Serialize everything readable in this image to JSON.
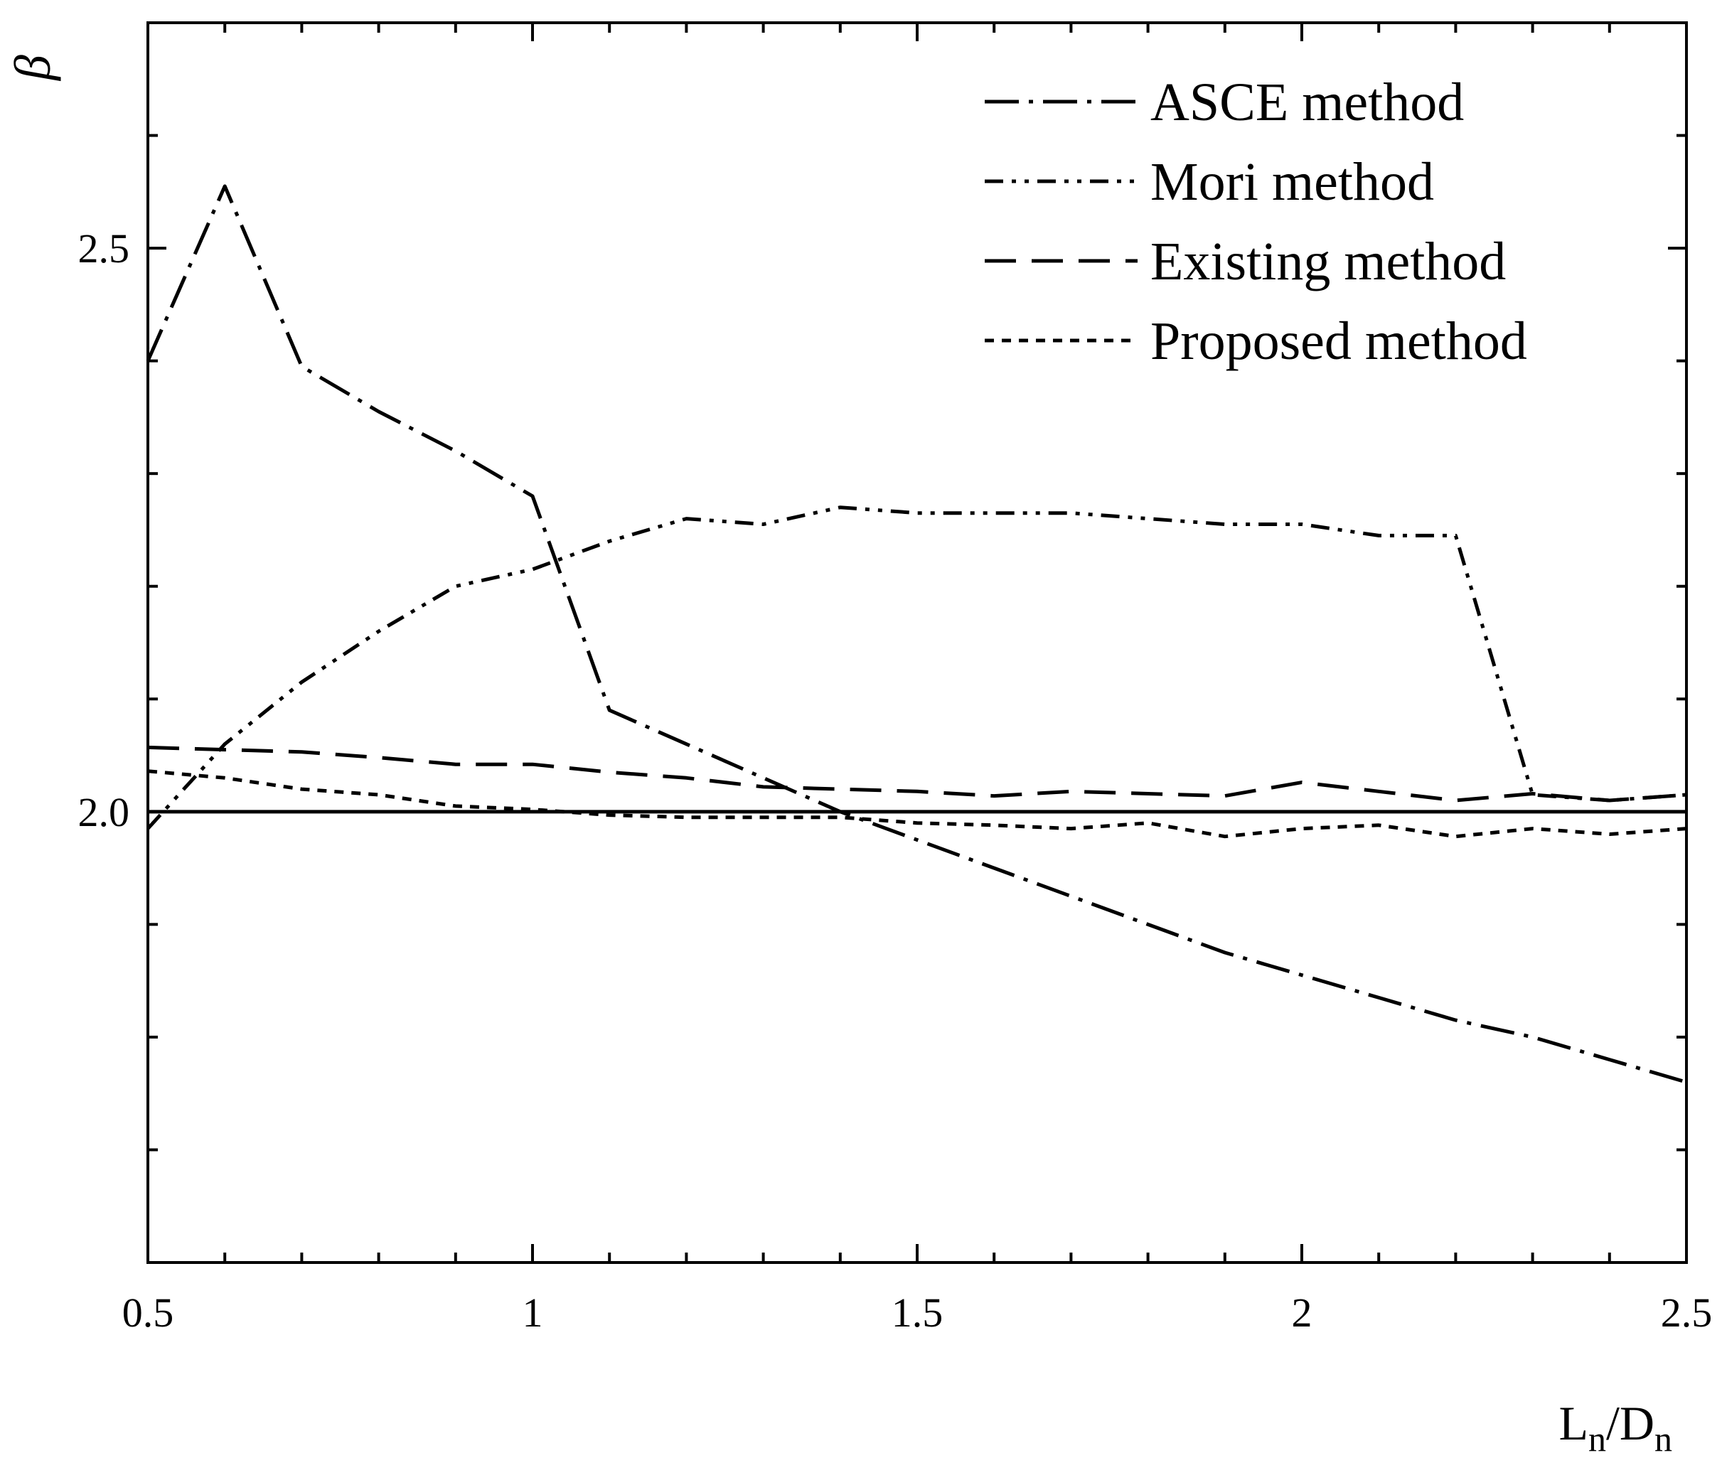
{
  "chart_data": {
    "type": "line",
    "title": "",
    "xlabel_main": "L",
    "xlabel_sub1": "n",
    "xlabel_sep": "/D",
    "xlabel_sub2": "n",
    "ylabel": "β",
    "xlim": [
      0.5,
      2.5
    ],
    "ylim": [
      1.6,
      2.7
    ],
    "x_ticks": [
      {
        "value": 0.5,
        "label": "0.5"
      },
      {
        "value": 1.0,
        "label": "1"
      },
      {
        "value": 1.5,
        "label": "1.5"
      },
      {
        "value": 2.0,
        "label": "2"
      },
      {
        "value": 2.5,
        "label": "2.5"
      }
    ],
    "y_ticks": [
      {
        "value": 2.0,
        "label": "2.0"
      },
      {
        "value": 2.5,
        "label": "2.5"
      }
    ],
    "x_minor_ticks": [
      0.6,
      0.7,
      0.8,
      0.9,
      1.1,
      1.2,
      1.3,
      1.4,
      1.6,
      1.7,
      1.8,
      1.9,
      2.1,
      2.2,
      2.3,
      2.4
    ],
    "y_minor_ticks": [
      1.7,
      1.8,
      1.9,
      2.1,
      2.2,
      2.3,
      2.4,
      2.6
    ],
    "reference_line": 2.0,
    "legend_position": "top-right",
    "x": [
      0.5,
      0.6,
      0.7,
      0.8,
      0.9,
      1.0,
      1.1,
      1.2,
      1.3,
      1.4,
      1.5,
      1.6,
      1.7,
      1.8,
      1.9,
      2.0,
      2.1,
      2.2,
      2.3,
      2.4,
      2.5
    ],
    "series": [
      {
        "name": "ASCE method",
        "style": "dash-dot",
        "values": [
          2.4,
          2.555,
          2.395,
          2.355,
          2.32,
          2.28,
          2.09,
          2.06,
          2.03,
          2.0,
          1.975,
          1.95,
          1.925,
          1.9,
          1.875,
          1.855,
          1.835,
          1.815,
          1.8,
          1.78,
          1.76
        ]
      },
      {
        "name": "Mori method",
        "style": "dash-dot-dot",
        "values": [
          1.985,
          2.06,
          2.115,
          2.16,
          2.2,
          2.215,
          2.24,
          2.26,
          2.255,
          2.27,
          2.265,
          2.265,
          2.265,
          2.26,
          2.255,
          2.255,
          2.245,
          2.245,
          2.015,
          2.01,
          2.015
        ]
      },
      {
        "name": "Existing method",
        "style": "dashed",
        "values": [
          2.057,
          2.055,
          2.053,
          2.048,
          2.042,
          2.042,
          2.035,
          2.03,
          2.022,
          2.02,
          2.018,
          2.014,
          2.018,
          2.016,
          2.014,
          2.026,
          2.018,
          2.01,
          2.016,
          2.01,
          2.015
        ]
      },
      {
        "name": "Proposed method",
        "style": "dotted",
        "values": [
          2.036,
          2.03,
          2.02,
          2.015,
          2.005,
          2.002,
          1.997,
          1.995,
          1.995,
          1.995,
          1.99,
          1.988,
          1.985,
          1.99,
          1.978,
          1.985,
          1.988,
          1.978,
          1.985,
          1.98,
          1.985
        ]
      }
    ]
  }
}
